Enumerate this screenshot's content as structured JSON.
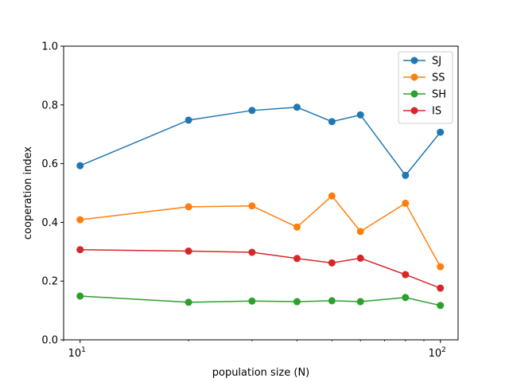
{
  "chart_data": {
    "type": "line",
    "title": "",
    "xlabel": "population size (N)",
    "ylabel": "cooperation index",
    "xscale": "log",
    "xlim": [
      9.0,
      112
    ],
    "ylim": [
      0.0,
      1.0
    ],
    "x": [
      10,
      20,
      30,
      40,
      50,
      60,
      80,
      100
    ],
    "x_ticks": [
      {
        "value": 10,
        "base": "10",
        "exp": "1"
      },
      {
        "value": 100,
        "base": "10",
        "exp": "2"
      }
    ],
    "y_ticks": [
      "0.0",
      "0.2",
      "0.4",
      "0.6",
      "0.8",
      "1.0"
    ],
    "grid": false,
    "legend_position": "top-right",
    "series": [
      {
        "name": "SJ",
        "color": "#1f77b4",
        "values": [
          0.593,
          0.748,
          0.781,
          0.792,
          0.743,
          0.766,
          0.56,
          0.707
        ]
      },
      {
        "name": "SS",
        "color": "#ff7f0e",
        "values": [
          0.409,
          0.453,
          0.456,
          0.384,
          0.49,
          0.369,
          0.465,
          0.249
        ]
      },
      {
        "name": "SH",
        "color": "#2ca02c",
        "values": [
          0.149,
          0.128,
          0.132,
          0.13,
          0.133,
          0.13,
          0.144,
          0.117
        ]
      },
      {
        "name": "IS",
        "color": "#d62728",
        "values": [
          0.307,
          0.302,
          0.298,
          0.277,
          0.262,
          0.278,
          0.222,
          0.176
        ]
      }
    ]
  }
}
